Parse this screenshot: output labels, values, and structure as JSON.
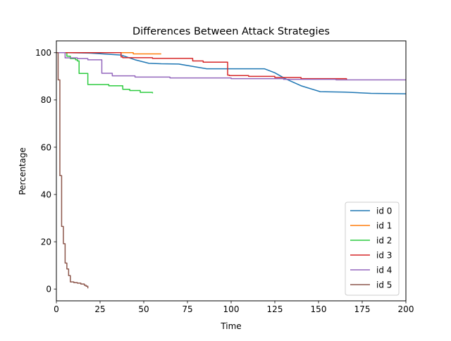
{
  "chart_data": {
    "type": "line",
    "title": "Differences Between Attack Strategies",
    "xlabel": "Time",
    "ylabel": "Percentage",
    "xlim": [
      0,
      200
    ],
    "ylim": [
      -5,
      105
    ],
    "xticks": [
      0,
      25,
      50,
      75,
      100,
      125,
      150,
      175,
      200
    ],
    "yticks": [
      0,
      20,
      40,
      60,
      80,
      100
    ],
    "grid": false,
    "legend_position": "lower-right",
    "series": [
      {
        "name": "id 0",
        "color": "#1f77b4",
        "step": false,
        "x": [
          0,
          5,
          20,
          37,
          45,
          53,
          60,
          70,
          78,
          86,
          100,
          110,
          119,
          125,
          131,
          140,
          151,
          165,
          180,
          200
        ],
        "y": [
          100,
          100,
          99.8,
          99,
          97,
          95.5,
          95.3,
          95.2,
          94.2,
          93.2,
          93.2,
          93.2,
          93.2,
          91.5,
          89,
          86,
          83.5,
          83.3,
          82.8,
          82.6
        ]
      },
      {
        "name": "id 1",
        "color": "#ff7f0e",
        "step": true,
        "x": [
          0,
          44,
          60
        ],
        "y": [
          100,
          99.5,
          99.5
        ]
      },
      {
        "name": "id 2",
        "color": "#2ecc40",
        "step": true,
        "x": [
          0,
          6,
          8,
          11,
          12,
          13,
          18,
          30,
          38,
          42,
          48,
          55
        ],
        "y": [
          100,
          98.5,
          97.5,
          97,
          96.5,
          91.2,
          86.5,
          86,
          84.5,
          84,
          83.2,
          82.8
        ],
        "stroke": "#2ca02c"
      },
      {
        "name": "id 3",
        "color": "#d62728",
        "step": true,
        "x": [
          0,
          37,
          38,
          55,
          78,
          84,
          98,
          99,
          110,
          125,
          140,
          166
        ],
        "y": [
          100,
          98.2,
          97.9,
          97.6,
          96.5,
          96,
          90.5,
          90.3,
          90,
          89.5,
          89,
          88.5
        ],
        "stroke": "#d62728"
      },
      {
        "name": "id 4",
        "color": "#9467bd",
        "step": true,
        "x": [
          0,
          5,
          12,
          18,
          26,
          32,
          45,
          65,
          100,
          130,
          160,
          200
        ],
        "y": [
          100,
          97.8,
          97.5,
          97,
          91.3,
          90.2,
          89.7,
          89.3,
          89,
          88.7,
          88.5,
          88.5
        ]
      },
      {
        "name": "id 5",
        "color": "#8c564b",
        "step": true,
        "x": [
          0,
          1,
          2,
          3,
          4,
          5,
          6,
          7,
          8,
          10,
          12,
          14,
          16,
          17,
          18
        ],
        "y": [
          100,
          88.5,
          48,
          26.5,
          19.2,
          11,
          8.5,
          5.7,
          3,
          2.7,
          2.5,
          2.1,
          1.6,
          1.2,
          0.3
        ]
      }
    ]
  }
}
